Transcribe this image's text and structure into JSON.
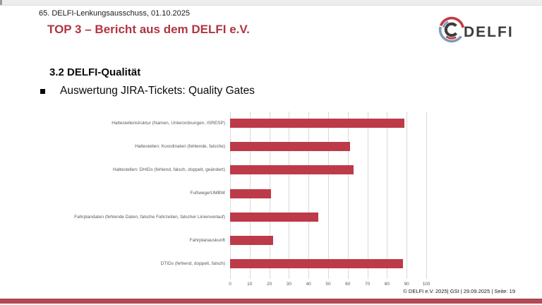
{
  "slide": {
    "header": "65. DELFI-Lenkungsausschuss, 01.10.2025",
    "title": "TOP 3 – Bericht aus dem DELFI e.V.",
    "subtitle": "3.2 DELFI-Qualität",
    "bullet": "Auswertung JIRA-Tickets: Quality Gates",
    "footer": "© DELFI e.V. 2025| GSt | 29.09.2025 |  Seite: 19",
    "logo_text": "DELFI"
  },
  "colors": {
    "accent_red": "#b13441",
    "bar_red": "#bd3a49",
    "strip_red": "#b04a55",
    "gridline_gray": "#d9d9d9",
    "label_gray": "#595959",
    "logo_red": "#c23b45",
    "logo_blue": "#7e9bb5",
    "logo_dark": "#3c3c3c"
  },
  "chart_data": {
    "type": "bar",
    "orientation": "horizontal",
    "title": "",
    "xlabel": "",
    "ylabel": "",
    "categories": [
      "Haltestellenstruktur (Namen, Unterordnungen, ISRESP)",
      "Haltestellen: Koordinaten (fehlende, falsche)",
      "Haltestellen: DHIDs (fehlend, falsch, doppelt, geändert)",
      "Fußwege/UMBW",
      "Fahrplandaten (fehlende Daten, falsche Fahrzeiten, falscher Linienverlauf)",
      "Fahrplanauskunft",
      "DTIDs (fehlend, doppelt, falsch)"
    ],
    "values": [
      89,
      61,
      63,
      21,
      45,
      22,
      88
    ],
    "xlim": [
      0,
      100
    ],
    "xticks": [
      0,
      10,
      20,
      30,
      40,
      50,
      60,
      70,
      80,
      90,
      100
    ],
    "grid": true,
    "legend": false,
    "bar_color": "#bd3a49"
  }
}
